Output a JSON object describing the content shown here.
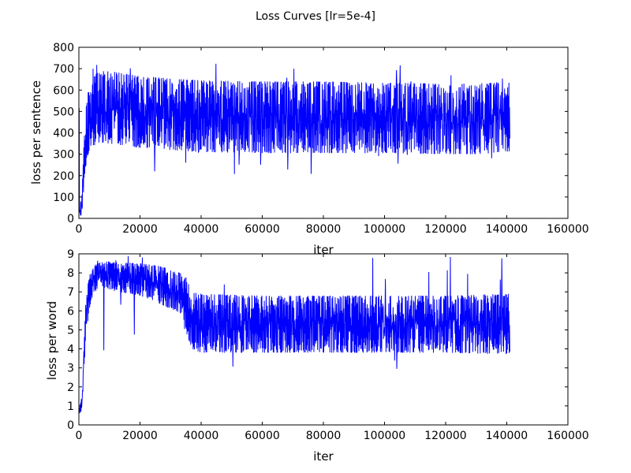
{
  "figure_title": "Loss Curves [lr=5e-4]",
  "line_color": "#0000ff",
  "chart_data": [
    {
      "type": "line",
      "title": "",
      "xlabel": "iter",
      "ylabel": "loss per sentence",
      "xlim": [
        0,
        160000
      ],
      "ylim": [
        0,
        800
      ],
      "xticks": [
        0,
        20000,
        40000,
        60000,
        80000,
        100000,
        120000,
        140000,
        160000
      ],
      "yticks": [
        0,
        100,
        200,
        300,
        400,
        500,
        600,
        700,
        800
      ],
      "grid": false,
      "series": [
        {
          "x_range": [
            0,
            141000
          ],
          "envelope_x": [
            0,
            1000,
            2000,
            3000,
            4000,
            5000,
            6000,
            7000,
            10000,
            20000,
            30000,
            40000,
            60000,
            80000,
            100000,
            120000,
            130000,
            141000
          ],
          "upper": [
            20,
            120,
            480,
            590,
            640,
            665,
            680,
            690,
            690,
            665,
            655,
            645,
            640,
            640,
            635,
            630,
            630,
            640
          ],
          "lower": [
            5,
            15,
            220,
            300,
            330,
            340,
            350,
            355,
            350,
            330,
            320,
            310,
            305,
            305,
            305,
            300,
            300,
            310
          ],
          "peaks_max": 745,
          "dips_min": 200
        }
      ]
    },
    {
      "type": "line",
      "title": "",
      "xlabel": "iter",
      "ylabel": "loss per word",
      "xlim": [
        0,
        160000
      ],
      "ylim": [
        0,
        9
      ],
      "xticks": [
        0,
        20000,
        40000,
        60000,
        80000,
        100000,
        120000,
        140000,
        160000
      ],
      "yticks": [
        0,
        1,
        2,
        3,
        4,
        5,
        6,
        7,
        8,
        9
      ],
      "grid": false,
      "series": [
        {
          "x_range": [
            0,
            141000
          ],
          "envelope_x": [
            0,
            1000,
            2000,
            3000,
            4000,
            6000,
            8000,
            10000,
            20000,
            25000,
            30000,
            33000,
            35000,
            37000,
            40000,
            60000,
            80000,
            100000,
            120000,
            141000
          ],
          "upper": [
            0.8,
            1.5,
            6.0,
            7.5,
            8.2,
            8.5,
            8.6,
            8.6,
            8.5,
            8.4,
            8.2,
            8.0,
            7.8,
            7.0,
            6.9,
            6.8,
            6.8,
            6.8,
            6.8,
            6.9
          ],
          "lower": [
            0.5,
            0.8,
            3.8,
            5.6,
            6.6,
            7.1,
            7.2,
            7.1,
            6.8,
            6.5,
            6.1,
            5.9,
            4.8,
            4.0,
            3.8,
            3.8,
            3.8,
            3.8,
            3.8,
            3.7
          ],
          "peaks_max": 8.9,
          "dips_min": 2.7
        }
      ]
    }
  ]
}
